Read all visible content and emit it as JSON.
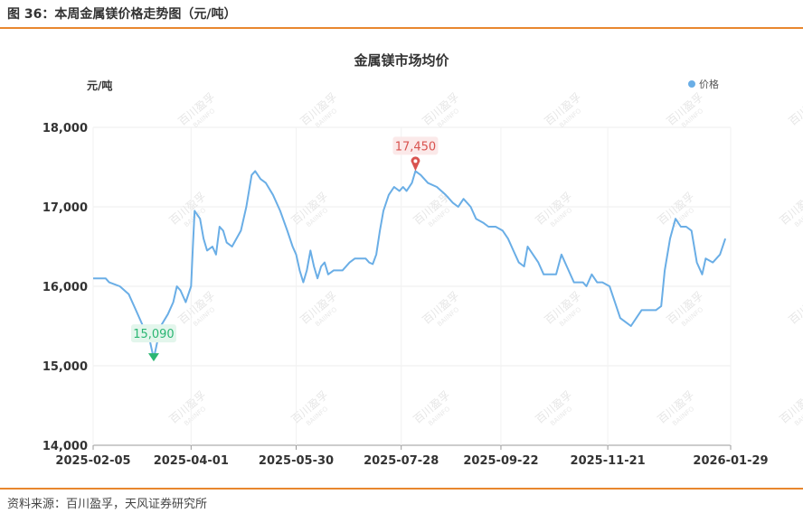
{
  "figure_title": "图 36：本周金属镁价格走势图（元/吨）",
  "source": "资料来源：百川盈孚，天风证券研究所",
  "colors": {
    "accent": "#e8872e",
    "line": "#6aaee6",
    "max_marker": "#d9534f",
    "min_marker": "#2bb673"
  },
  "chart_data": {
    "type": "line",
    "title": "金属镁市场均价",
    "ylabel": "元/吨",
    "legend": {
      "label": "价格",
      "position": "top-right"
    },
    "ylim": [
      14000,
      18000
    ],
    "yticks": [
      "14,000",
      "15,000",
      "16,000",
      "17,000",
      "18,000"
    ],
    "xticks": [
      "2025-02-05",
      "2025-04-01",
      "2025-05-30",
      "2025-07-28",
      "2025-09-22",
      "2025-11-21",
      "2026-01-29"
    ],
    "grid": true,
    "series": [
      {
        "name": "价格",
        "x_range": [
          "2025-02-05",
          "2026-01-29"
        ],
        "points": [
          [
            "2025-02-05",
            16100
          ],
          [
            "2025-02-12",
            16100
          ],
          [
            "2025-02-14",
            16050
          ],
          [
            "2025-02-20",
            16000
          ],
          [
            "2025-02-25",
            15900
          ],
          [
            "2025-03-01",
            15700
          ],
          [
            "2025-03-05",
            15500
          ],
          [
            "2025-03-09",
            15300
          ],
          [
            "2025-03-11",
            15090
          ],
          [
            "2025-03-13",
            15300
          ],
          [
            "2025-03-15",
            15500
          ],
          [
            "2025-03-19",
            15650
          ],
          [
            "2025-03-22",
            15800
          ],
          [
            "2025-03-24",
            16000
          ],
          [
            "2025-03-26",
            15950
          ],
          [
            "2025-03-29",
            15800
          ],
          [
            "2025-04-01",
            16000
          ],
          [
            "2025-04-02",
            16500
          ],
          [
            "2025-04-03",
            16950
          ],
          [
            "2025-04-06",
            16850
          ],
          [
            "2025-04-08",
            16600
          ],
          [
            "2025-04-10",
            16450
          ],
          [
            "2025-04-13",
            16500
          ],
          [
            "2025-04-15",
            16400
          ],
          [
            "2025-04-17",
            16750
          ],
          [
            "2025-04-19",
            16700
          ],
          [
            "2025-04-21",
            16550
          ],
          [
            "2025-04-24",
            16500
          ],
          [
            "2025-04-29",
            16700
          ],
          [
            "2025-05-02",
            17000
          ],
          [
            "2025-05-05",
            17400
          ],
          [
            "2025-05-07",
            17450
          ],
          [
            "2025-05-10",
            17350
          ],
          [
            "2025-05-13",
            17300
          ],
          [
            "2025-05-17",
            17150
          ],
          [
            "2025-05-21",
            16950
          ],
          [
            "2025-05-25",
            16700
          ],
          [
            "2025-05-28",
            16500
          ],
          [
            "2025-05-30",
            16400
          ],
          [
            "2025-06-01",
            16200
          ],
          [
            "2025-06-03",
            16050
          ],
          [
            "2025-06-05",
            16200
          ],
          [
            "2025-06-07",
            16450
          ],
          [
            "2025-06-09",
            16250
          ],
          [
            "2025-06-11",
            16100
          ],
          [
            "2025-06-13",
            16250
          ],
          [
            "2025-06-15",
            16300
          ],
          [
            "2025-06-17",
            16150
          ],
          [
            "2025-06-20",
            16200
          ],
          [
            "2025-06-25",
            16200
          ],
          [
            "2025-06-29",
            16300
          ],
          [
            "2025-07-02",
            16350
          ],
          [
            "2025-07-08",
            16350
          ],
          [
            "2025-07-10",
            16300
          ],
          [
            "2025-07-12",
            16280
          ],
          [
            "2025-07-14",
            16400
          ],
          [
            "2025-07-16",
            16700
          ],
          [
            "2025-07-18",
            16950
          ],
          [
            "2025-07-21",
            17150
          ],
          [
            "2025-07-24",
            17250
          ],
          [
            "2025-07-27",
            17200
          ],
          [
            "2025-07-29",
            17250
          ],
          [
            "2025-07-31",
            17200
          ],
          [
            "2025-08-03",
            17300
          ],
          [
            "2025-08-05",
            17450
          ],
          [
            "2025-08-08",
            17400
          ],
          [
            "2025-08-12",
            17300
          ],
          [
            "2025-08-17",
            17250
          ],
          [
            "2025-08-22",
            17150
          ],
          [
            "2025-08-26",
            17050
          ],
          [
            "2025-08-29",
            17000
          ],
          [
            "2025-09-01",
            17100
          ],
          [
            "2025-09-05",
            17000
          ],
          [
            "2025-09-08",
            16850
          ],
          [
            "2025-09-12",
            16800
          ],
          [
            "2025-09-15",
            16750
          ],
          [
            "2025-09-19",
            16750
          ],
          [
            "2025-09-23",
            16700
          ],
          [
            "2025-09-26",
            16600
          ],
          [
            "2025-09-29",
            16450
          ],
          [
            "2025-10-02",
            16300
          ],
          [
            "2025-10-05",
            16250
          ],
          [
            "2025-10-07",
            16500
          ],
          [
            "2025-10-10",
            16400
          ],
          [
            "2025-10-13",
            16300
          ],
          [
            "2025-10-16",
            16150
          ],
          [
            "2025-10-23",
            16150
          ],
          [
            "2025-10-26",
            16400
          ],
          [
            "2025-10-29",
            16250
          ],
          [
            "2025-11-02",
            16050
          ],
          [
            "2025-11-07",
            16050
          ],
          [
            "2025-11-09",
            16000
          ],
          [
            "2025-11-12",
            16150
          ],
          [
            "2025-11-15",
            16050
          ],
          [
            "2025-11-18",
            16050
          ],
          [
            "2025-11-22",
            16000
          ],
          [
            "2025-11-25",
            15800
          ],
          [
            "2025-11-28",
            15600
          ],
          [
            "2025-12-01",
            15550
          ],
          [
            "2025-12-04",
            15500
          ],
          [
            "2025-12-07",
            15600
          ],
          [
            "2025-12-10",
            15700
          ],
          [
            "2025-12-14",
            15700
          ],
          [
            "2025-12-18",
            15700
          ],
          [
            "2025-12-21",
            15750
          ],
          [
            "2025-12-23",
            16200
          ],
          [
            "2025-12-26",
            16600
          ],
          [
            "2025-12-29",
            16850
          ],
          [
            "2026-01-01",
            16750
          ],
          [
            "2026-01-04",
            16750
          ],
          [
            "2026-01-07",
            16700
          ],
          [
            "2026-01-10",
            16300
          ],
          [
            "2026-01-13",
            16150
          ],
          [
            "2026-01-15",
            16350
          ],
          [
            "2026-01-19",
            16300
          ],
          [
            "2026-01-23",
            16400
          ],
          [
            "2026-01-26",
            16600
          ]
        ]
      }
    ],
    "annotations": [
      {
        "kind": "max",
        "x": "2025-08-05",
        "y": 17450,
        "label": "17,450"
      },
      {
        "kind": "min",
        "x": "2025-03-11",
        "y": 15090,
        "label": "15,090"
      }
    ],
    "watermark": {
      "text": "百川盈孚",
      "subtext": "BAIINFO"
    }
  }
}
